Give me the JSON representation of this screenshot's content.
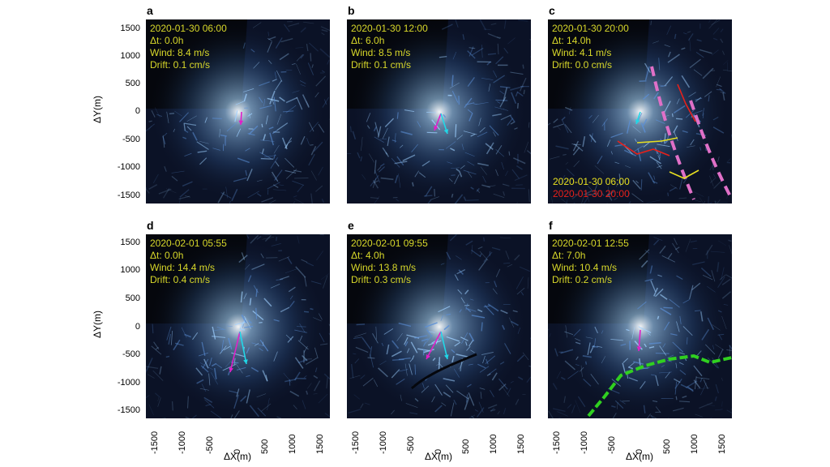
{
  "axes": {
    "xlabel": "ΔX(m)",
    "ylabel": "ΔY(m)",
    "ticks": [
      "1500",
      "1000",
      "500",
      "0",
      "-500",
      "-1000",
      "-1500"
    ],
    "xticks": [
      "-1500",
      "-1000",
      "-500",
      "0",
      "500",
      "1000",
      "1500"
    ]
  },
  "panels": [
    {
      "label": "a",
      "time": "2020-01-30 06:00",
      "dt": "Δt: 0.0h",
      "wind": "Wind: 8.4 m/s",
      "drift": "Drift: 0.1 cm/s"
    },
    {
      "label": "b",
      "time": "2020-01-30 12:00",
      "dt": "Δt: 6.0h",
      "wind": "Wind: 8.5 m/s",
      "drift": "Drift: 0.1 cm/s"
    },
    {
      "label": "c",
      "time": "2020-01-30 20:00",
      "dt": "Δt: 14.0h",
      "wind": "Wind: 4.1 m/s",
      "drift": "Drift: 0.0 cm/s"
    },
    {
      "label": "d",
      "time": "2020-02-01 05:55",
      "dt": "Δt: 0.0h",
      "wind": "Wind: 14.4 m/s",
      "drift": "Drift: 0.4 cm/s"
    },
    {
      "label": "e",
      "time": "2020-02-01 09:55",
      "dt": "Δt: 4.0h",
      "wind": "Wind: 13.8 m/s",
      "drift": "Drift: 0.3 cm/s"
    },
    {
      "label": "f",
      "time": "2020-02-01 12:55",
      "dt": "Δt: 7.0h",
      "wind": "Wind: 10.4 m/s",
      "drift": "Drift: 0.2 cm/s"
    }
  ],
  "legend": {
    "item1": "2020-01-30 06:00",
    "item2": "2020-01-30 20:00",
    "color1": "#e8e020",
    "color2": "#e8201a"
  },
  "colors": {
    "info_text": "#d8d82a",
    "magenta_arrow": "#e020c8",
    "cyan_arrow": "#20d8e8",
    "ridge_line": "#e070c8",
    "edge_line": "#30d020"
  }
}
